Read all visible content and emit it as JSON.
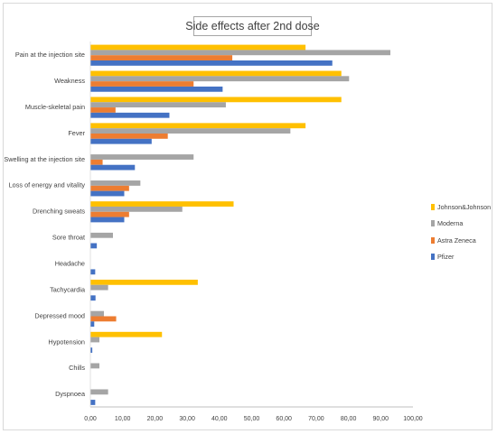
{
  "chart_data": {
    "type": "bar",
    "orientation": "horizontal",
    "title": "Side effects after 2nd dose",
    "xlabel": "",
    "ylabel": "",
    "xlim": [
      0,
      100
    ],
    "xticks": [
      "0,00",
      "10,00",
      "20,00",
      "30,00",
      "40,00",
      "50,00",
      "60,00",
      "70,00",
      "80,00",
      "90,00",
      "100,00"
    ],
    "xtick_values": [
      0,
      10,
      20,
      30,
      40,
      50,
      60,
      70,
      80,
      90,
      100
    ],
    "grid": false,
    "legend_position": "right",
    "categories": [
      "Pain at the injection site",
      "Weakness",
      "Muscle-skeletal pain",
      "Fever",
      "Swelling at the injection site",
      "Loss of energy and vitality",
      "Drenching sweats",
      "Sore throat",
      "Headache",
      "Tachycardia",
      "Depressed mood",
      "Hypotension",
      "Chills",
      "Dyspnoea"
    ],
    "series": [
      {
        "name": "Johnson&Johnson",
        "color": "#ffc000",
        "values": [
          66.7,
          77.8,
          77.8,
          66.7,
          0,
          0,
          44.4,
          0,
          0,
          33.3,
          0,
          22.2,
          0,
          0
        ]
      },
      {
        "name": "Moderna",
        "color": "#a5a5a5",
        "values": [
          93.0,
          80.2,
          42.0,
          62.0,
          32.0,
          15.5,
          28.5,
          7.0,
          0,
          5.5,
          4.2,
          2.8,
          2.8,
          5.5
        ]
      },
      {
        "name": "Astra Zeneca",
        "color": "#ed7d31",
        "values": [
          44.0,
          32.0,
          7.8,
          24.0,
          3.8,
          12.0,
          12.0,
          0,
          0,
          0,
          8.0,
          0,
          0,
          0
        ]
      },
      {
        "name": "Pfizer",
        "color": "#4472c4",
        "values": [
          75.0,
          41.0,
          24.5,
          19.0,
          13.8,
          10.5,
          10.5,
          2.0,
          1.5,
          1.6,
          1.2,
          0.6,
          0,
          1.5
        ]
      }
    ],
    "legend_order": [
      "Johnson&Johnson",
      "Moderna",
      "Astra Zeneca",
      "Pfizer"
    ]
  }
}
